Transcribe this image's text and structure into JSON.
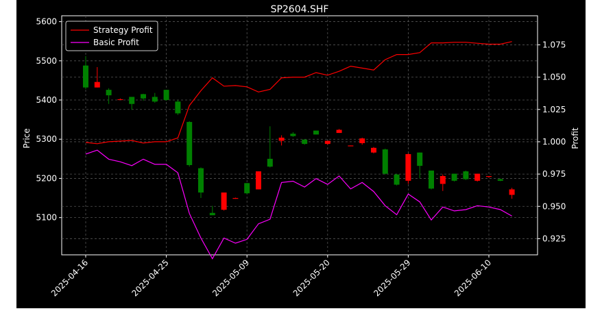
{
  "chart_data": {
    "type": "candlestick",
    "title": "SP2604.SHF",
    "xlabel": "",
    "ylabel_left": "Price",
    "ylabel_right": "Profit",
    "ylim_left": [
      5005,
      5615
    ],
    "ylim_right": [
      0.9125,
      1.0975
    ],
    "yticks_left": [
      5100,
      5200,
      5300,
      5400,
      5500,
      5600
    ],
    "yticks_right": [
      0.925,
      0.95,
      0.975,
      1.0,
      1.025,
      1.05,
      1.075
    ],
    "ytick_labels_right": [
      "0.925",
      "0.950",
      "0.975",
      "1.000",
      "1.025",
      "1.050",
      "1.075"
    ],
    "xticks": [
      "2025-04-16",
      "2025-04-25",
      "2025-05-09",
      "2025-05-20",
      "2025-05-29",
      "2025-06-10"
    ],
    "xtick_positions": [
      0,
      7,
      14,
      21,
      28,
      35
    ],
    "grid": true,
    "legend_position": "top-left",
    "colors": {
      "background": "#000000",
      "up": "#008000",
      "down": "#ff0000",
      "strategy": "#ff0000",
      "basic": "#ff00ff",
      "grid": "#555555",
      "text": "#ffffff"
    },
    "candles": [
      {
        "o": 5432,
        "h": 5512,
        "l": 5428,
        "c": 5488
      },
      {
        "o": 5446,
        "h": 5484,
        "l": 5432,
        "c": 5432
      },
      {
        "o": 5412,
        "h": 5430,
        "l": 5390,
        "c": 5426
      },
      {
        "o": 5402,
        "h": 5404,
        "l": 5400,
        "c": 5400
      },
      {
        "o": 5390,
        "h": 5407,
        "l": 5375,
        "c": 5408
      },
      {
        "o": 5404,
        "h": 5416,
        "l": 5398,
        "c": 5415
      },
      {
        "o": 5396,
        "h": 5418,
        "l": 5393,
        "c": 5408
      },
      {
        "o": 5400,
        "h": 5426,
        "l": 5398,
        "c": 5426
      },
      {
        "o": 5366,
        "h": 5400,
        "l": 5362,
        "c": 5396
      },
      {
        "o": 5234,
        "h": 5346,
        "l": 5230,
        "c": 5344
      },
      {
        "o": 5164,
        "h": 5228,
        "l": 5150,
        "c": 5226
      },
      {
        "o": 5106,
        "h": 5130,
        "l": 5106,
        "c": 5112
      },
      {
        "o": 5164,
        "h": 5164,
        "l": 5118,
        "c": 5120
      },
      {
        "o": 5150,
        "h": 5151,
        "l": 5148,
        "c": 5149
      },
      {
        "o": 5162,
        "h": 5188,
        "l": 5160,
        "c": 5188
      },
      {
        "o": 5218,
        "h": 5218,
        "l": 5172,
        "c": 5172
      },
      {
        "o": 5230,
        "h": 5333,
        "l": 5228,
        "c": 5250
      },
      {
        "o": 5304,
        "h": 5310,
        "l": 5284,
        "c": 5296
      },
      {
        "o": 5308,
        "h": 5318,
        "l": 5306,
        "c": 5314
      },
      {
        "o": 5288,
        "h": 5300,
        "l": 5286,
        "c": 5299
      },
      {
        "o": 5312,
        "h": 5322,
        "l": 5312,
        "c": 5322
      },
      {
        "o": 5296,
        "h": 5296,
        "l": 5286,
        "c": 5288
      },
      {
        "o": 5324,
        "h": 5326,
        "l": 5316,
        "c": 5316
      },
      {
        "o": 5284,
        "h": 5284,
        "l": 5282,
        "c": 5283
      },
      {
        "o": 5302,
        "h": 5304,
        "l": 5286,
        "c": 5290
      },
      {
        "o": 5278,
        "h": 5280,
        "l": 5264,
        "c": 5266
      },
      {
        "o": 5212,
        "h": 5276,
        "l": 5210,
        "c": 5274
      },
      {
        "o": 5184,
        "h": 5212,
        "l": 5182,
        "c": 5210
      },
      {
        "o": 5262,
        "h": 5264,
        "l": 5186,
        "c": 5194
      },
      {
        "o": 5232,
        "h": 5266,
        "l": 5200,
        "c": 5266
      },
      {
        "o": 5174,
        "h": 5220,
        "l": 5172,
        "c": 5220
      },
      {
        "o": 5206,
        "h": 5210,
        "l": 5168,
        "c": 5186
      },
      {
        "o": 5194,
        "h": 5212,
        "l": 5192,
        "c": 5212
      },
      {
        "o": 5198,
        "h": 5220,
        "l": 5196,
        "c": 5218
      },
      {
        "o": 5212,
        "h": 5212,
        "l": 5192,
        "c": 5194
      },
      {
        "o": 5206,
        "h": 5206,
        "l": 5202,
        "c": 5204
      },
      {
        "o": 5194,
        "h": 5200,
        "l": 5193,
        "c": 5198
      },
      {
        "o": 5172,
        "h": 5176,
        "l": 5148,
        "c": 5158
      }
    ],
    "series": [
      {
        "name": "Strategy Profit",
        "axis": "right",
        "values": [
          0.9995,
          0.9985,
          1.0,
          1.0005,
          1.001,
          0.999,
          1.0,
          1.0,
          1.003,
          1.028,
          1.0395,
          1.0495,
          1.043,
          1.0435,
          1.0425,
          1.0385,
          1.0405,
          1.0495,
          1.05,
          1.05,
          1.0535,
          1.0515,
          1.0545,
          1.0585,
          1.057,
          1.0555,
          1.0635,
          1.0675,
          1.0675,
          1.069,
          1.0765,
          1.0765,
          1.077,
          1.077,
          1.0762,
          1.0755,
          1.0755,
          1.0775
        ]
      },
      {
        "name": "Basic Profit",
        "axis": "right",
        "values": [
          0.9905,
          0.9935,
          0.9865,
          0.9845,
          0.9815,
          0.9865,
          0.9825,
          0.9825,
          0.976,
          0.9445,
          0.9255,
          0.9095,
          0.9255,
          0.9215,
          0.9245,
          0.9365,
          0.94,
          0.9685,
          0.9695,
          0.965,
          0.9715,
          0.967,
          0.9735,
          0.9635,
          0.9685,
          0.9615,
          0.9505,
          0.9435,
          0.9595,
          0.9535,
          0.9395,
          0.9495,
          0.9465,
          0.9475,
          0.9505,
          0.9495,
          0.9475,
          0.9425
        ]
      }
    ]
  }
}
